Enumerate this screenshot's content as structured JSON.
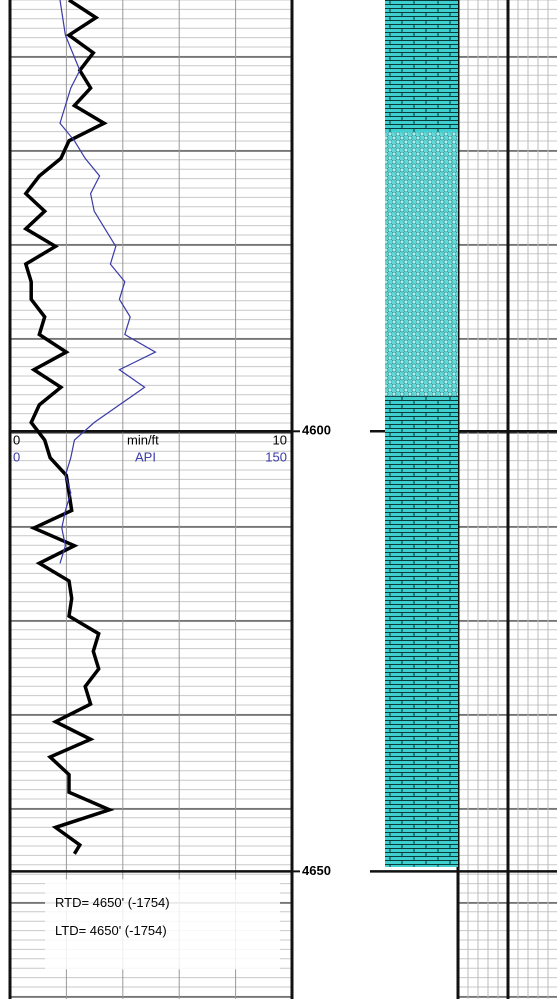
{
  "chart_data": {
    "type": "log",
    "ylim": [
      4551,
      4664.5
    ],
    "yticks": [
      4600,
      4650
    ],
    "series": [
      {
        "unit": "min/ft",
        "xlim": [
          0,
          10
        ],
        "color": "#000000",
        "depth": [
          4551,
          4553,
          4555,
          4557,
          4559,
          4561,
          4563,
          4565,
          4567,
          4569,
          4571,
          4573,
          4575,
          4577,
          4579,
          4581,
          4583,
          4585,
          4587,
          4589,
          4591,
          4593,
          4595,
          4597,
          4599,
          4601,
          4603,
          4605,
          4607,
          4609,
          4611,
          4613,
          4615,
          4617,
          4619,
          4621,
          4623,
          4625,
          4627,
          4629,
          4631,
          4633,
          4635,
          4637,
          4639,
          4641,
          4643,
          4645,
          4647,
          4648
        ],
        "values": [
          2.0,
          3.0,
          2.0,
          2.9,
          2.4,
          2.8,
          2.2,
          3.3,
          2.0,
          1.7,
          0.9,
          0.4,
          1.1,
          0.4,
          1.5,
          0.4,
          0.6,
          0.6,
          1.1,
          0.9,
          1.9,
          0.7,
          1.7,
          0.9,
          0.6,
          1.1,
          1.3,
          1.9,
          2.0,
          2.1,
          0.7,
          2.2,
          0.9,
          2.0,
          2.1,
          2.0,
          3.1,
          2.9,
          3.1,
          2.6,
          2.8,
          1.5,
          2.8,
          1.3,
          2.0,
          2.0,
          3.5,
          1.5,
          2.4,
          2.2
        ]
      },
      {
        "unit": "API",
        "xlim": [
          0,
          150
        ],
        "color": "#3a3aa8",
        "depth": [
          4551,
          4555,
          4559,
          4561,
          4565,
          4567,
          4569,
          4571,
          4573,
          4575,
          4577,
          4579,
          4581,
          4583,
          4585,
          4587,
          4589,
          4591,
          4593,
          4595,
          4597,
          4599,
          4601,
          4603,
          4605,
          4607,
          4609,
          4611,
          4613,
          4615
        ],
        "values": [
          25,
          28,
          36,
          31,
          25,
          33,
          39,
          47,
          42,
          44,
          50,
          56,
          53,
          61,
          58,
          64,
          61,
          78,
          58,
          72,
          58,
          44,
          33,
          31,
          28,
          31,
          28,
          26,
          28,
          25
        ]
      }
    ],
    "lithology": [
      {
        "top": 4550,
        "base": 4566,
        "pattern": "limestone"
      },
      {
        "top": 4566,
        "base": 4596,
        "pattern": "sandstone"
      },
      {
        "top": 4596,
        "base": 4649.5,
        "pattern": "limestone"
      }
    ],
    "annotations": [
      "RTD= 4650' (-1754)",
      "LTD= 4650' (-1754)"
    ]
  }
}
